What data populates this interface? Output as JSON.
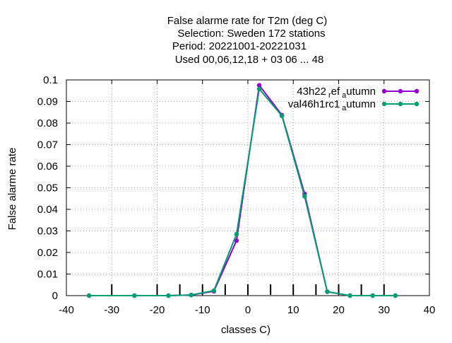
{
  "chart_data": {
    "type": "line",
    "title_lines": [
      "False alarme rate  for T2m (deg C)",
      "Selection: Sweden    172 stations",
      "Period: 20221001-20221031",
      "Used  00,06,12,18  + 03 06 ... 48"
    ],
    "xlabel": "classes C)",
    "ylabel": "False alarme rate",
    "xlim": [
      -40,
      40
    ],
    "ylim": [
      0,
      0.1
    ],
    "x_ticks": [
      -40,
      -30,
      -20,
      -10,
      0,
      10,
      20,
      30,
      40
    ],
    "x_tick_labels": [
      "-40",
      "-30",
      "-20",
      "-10",
      "0",
      "10",
      "20",
      "30",
      "40"
    ],
    "y_ticks": [
      0,
      0.01,
      0.02,
      0.03,
      0.04,
      0.05,
      0.06,
      0.07,
      0.08,
      0.09,
      0.1
    ],
    "y_tick_labels": [
      "0",
      "0.01",
      "0.02",
      "0.03",
      "0.04",
      "0.05",
      "0.06",
      "0.07",
      "0.08",
      "0.09",
      "0.1"
    ],
    "class_edges": [
      -30,
      -20,
      -15,
      -10,
      -5,
      0,
      5,
      10,
      15,
      20,
      25,
      30
    ],
    "grid": true,
    "legend_position": "top-right",
    "series": [
      {
        "legend": {
          "base": "43h22",
          "sub1": "r",
          "mid": "ef",
          "sub2": "a",
          "tail": "utumn"
        },
        "color": "#9400d3",
        "x": [
          -35,
          -25,
          -17.5,
          -12.5,
          -7.5,
          -2.5,
          2.5,
          7.5,
          12.5,
          17.5,
          22.5,
          27.5,
          32.5
        ],
        "y": [
          0,
          0,
          0,
          0.0003,
          0.002,
          0.0255,
          0.0975,
          0.0837,
          0.0472,
          0.0018,
          0,
          0,
          0
        ]
      },
      {
        "legend": {
          "base": "val46h1rc1",
          "sub1": "",
          "mid": "",
          "sub2": "a",
          "tail": "utumn"
        },
        "color": "#009e73",
        "x": [
          -35,
          -25,
          -17.5,
          -12.5,
          -7.5,
          -2.5,
          2.5,
          7.5,
          12.5,
          17.5,
          22.5,
          27.5,
          32.5
        ],
        "y": [
          0,
          0,
          0,
          0.0003,
          0.0023,
          0.0285,
          0.0958,
          0.0833,
          0.046,
          0.0018,
          0,
          0,
          0
        ]
      }
    ]
  }
}
